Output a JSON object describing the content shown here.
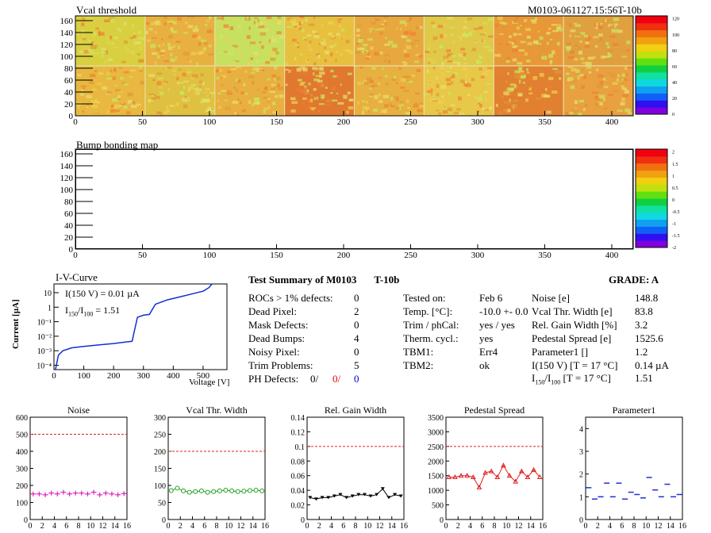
{
  "module_id": "M0103-061127.15:56T-10b",
  "vcal": {
    "title": "Vcal threshold",
    "xticks": [
      "0",
      "50",
      "100",
      "150",
      "200",
      "250",
      "300",
      "350",
      "400"
    ],
    "yticks": [
      "0",
      "20",
      "40",
      "60",
      "80",
      "100",
      "120",
      "140",
      "160"
    ],
    "zticks": [
      "0",
      "20",
      "40",
      "60",
      "80",
      "100",
      "120"
    ]
  },
  "bump": {
    "title": "Bump bonding map",
    "xticks": [
      "0",
      "50",
      "100",
      "150",
      "200",
      "250",
      "300",
      "350",
      "400"
    ],
    "yticks": [
      "0",
      "20",
      "40",
      "60",
      "80",
      "100",
      "120",
      "140",
      "160"
    ],
    "zticks": [
      "-2",
      "-1.5",
      "-1",
      "-0.5",
      "0",
      "0.5",
      "1",
      "1.5",
      "2"
    ]
  },
  "iv": {
    "title": "I-V-Curve",
    "ylabel": "Current [µA]",
    "xlabel": "Voltage [V]",
    "i150": "I(150 V) = 0.01 µA",
    "ratio_label": "I",
    "ratio_sub1": "150",
    "ratio_sep": "/I",
    "ratio_sub2": "100",
    "ratio_val": "=  1.51",
    "xticks": [
      "0",
      "100",
      "200",
      "300",
      "400",
      "500"
    ],
    "yticks": [
      "10⁻⁴",
      "10⁻³",
      "10⁻²",
      "10⁻¹",
      "1",
      "10"
    ]
  },
  "summary": {
    "title": "Test Summary of M0103",
    "tag": "T-10b",
    "grade_label": "GRADE:  A",
    "rows": [
      {
        "label": "ROCs > 1% defects:",
        "value": "0"
      },
      {
        "label": "Dead Pixel:",
        "value": "2"
      },
      {
        "label": "Mask Defects:",
        "value": "0"
      },
      {
        "label": "Dead Bumps:",
        "value": "4"
      },
      {
        "label": "Noisy Pixel:",
        "value": "0"
      },
      {
        "label": "Trim Problems:",
        "value": "5"
      }
    ],
    "ph_label": "PH Defects:",
    "ph_values": [
      "0/",
      "0/",
      "0"
    ],
    "info": [
      {
        "label": "Tested on:",
        "value": "Feb 6"
      },
      {
        "label": "Temp. [°C]:",
        "value": "-10.0 +- 0.0"
      },
      {
        "label": "Trim / phCal:",
        "value": "yes / yes"
      },
      {
        "label": "Therm. cycl.:",
        "value": "yes"
      },
      {
        "label": "TBM1:",
        "value": "Err4"
      },
      {
        "label": "TBM2:",
        "value": "ok"
      }
    ],
    "params": [
      {
        "label": "Noise [e]",
        "value": "148.8"
      },
      {
        "label": "Vcal Thr. Width [e]",
        "value": "83.8"
      },
      {
        "label": "Rel. Gain Width [%]",
        "value": "3.2"
      },
      {
        "label": "Pedestal Spread [e]",
        "value": "1525.6"
      },
      {
        "label": "Parameter1 []",
        "value": "1.2"
      },
      {
        "label": "I(150 V)  [T = 17 °C]",
        "value": "0.14 µA"
      }
    ],
    "ratio_row_label": "I",
    "ratio_row_sub1": "150",
    "ratio_row_sep": "/I",
    "ratio_row_sub2": "100",
    "ratio_row_rest": "  [T = 17 °C]",
    "ratio_row_value": "1.51"
  },
  "colors": {
    "noise": "#e020c0",
    "vcal_width": "#20a020",
    "gain_width": "#000000",
    "pedestal": "#e02020",
    "parameter1": "#2030d0",
    "limit": "#e02020",
    "iv_curve": "#1030d0"
  },
  "chart_data": [
    {
      "type": "scatter",
      "title": "Noise",
      "ylim": [
        0,
        600
      ],
      "limit": 500,
      "x": [
        0,
        1,
        2,
        3,
        4,
        5,
        6,
        7,
        8,
        9,
        10,
        11,
        12,
        13,
        14,
        15
      ],
      "values": [
        150,
        150,
        145,
        155,
        150,
        160,
        150,
        155,
        155,
        150,
        160,
        145,
        155,
        150,
        145,
        152
      ]
    },
    {
      "type": "line",
      "title": "Vcal Thr. Width",
      "ylim": [
        0,
        300
      ],
      "limit": 200,
      "x": [
        0,
        1,
        2,
        3,
        4,
        5,
        6,
        7,
        8,
        9,
        10,
        11,
        12,
        13,
        14,
        15
      ],
      "values": [
        85,
        92,
        84,
        80,
        82,
        84,
        80,
        82,
        84,
        86,
        84,
        82,
        83,
        85,
        86,
        84
      ]
    },
    {
      "type": "line",
      "title": "Rel. Gain Width",
      "ylim": [
        0,
        0.14
      ],
      "limit": 0.1,
      "x": [
        0,
        1,
        2,
        3,
        4,
        5,
        6,
        7,
        8,
        9,
        10,
        11,
        12,
        13,
        14,
        15
      ],
      "values": [
        0.03,
        0.028,
        0.03,
        0.03,
        0.032,
        0.034,
        0.03,
        0.032,
        0.034,
        0.034,
        0.032,
        0.034,
        0.042,
        0.03,
        0.034,
        0.032
      ]
    },
    {
      "type": "line",
      "title": "Pedestal Spread",
      "ylim": [
        0,
        3500
      ],
      "limit": 2500,
      "x": [
        0,
        1,
        2,
        3,
        4,
        5,
        6,
        7,
        8,
        9,
        10,
        11,
        12,
        13,
        14,
        15
      ],
      "values": [
        1450,
        1450,
        1500,
        1500,
        1450,
        1100,
        1600,
        1650,
        1450,
        1850,
        1500,
        1300,
        1650,
        1450,
        1700,
        1450
      ]
    },
    {
      "type": "scatter",
      "title": "Parameter1",
      "ylim": [
        0,
        4.5
      ],
      "x": [
        0,
        1,
        2,
        3,
        4,
        5,
        6,
        7,
        8,
        9,
        10,
        11,
        12,
        13,
        14,
        15
      ],
      "values": [
        1.4,
        0.9,
        1.0,
        1.6,
        1.0,
        1.6,
        0.9,
        1.2,
        1.1,
        0.95,
        1.85,
        1.3,
        1.0,
        1.55,
        1.0,
        1.1
      ]
    }
  ]
}
